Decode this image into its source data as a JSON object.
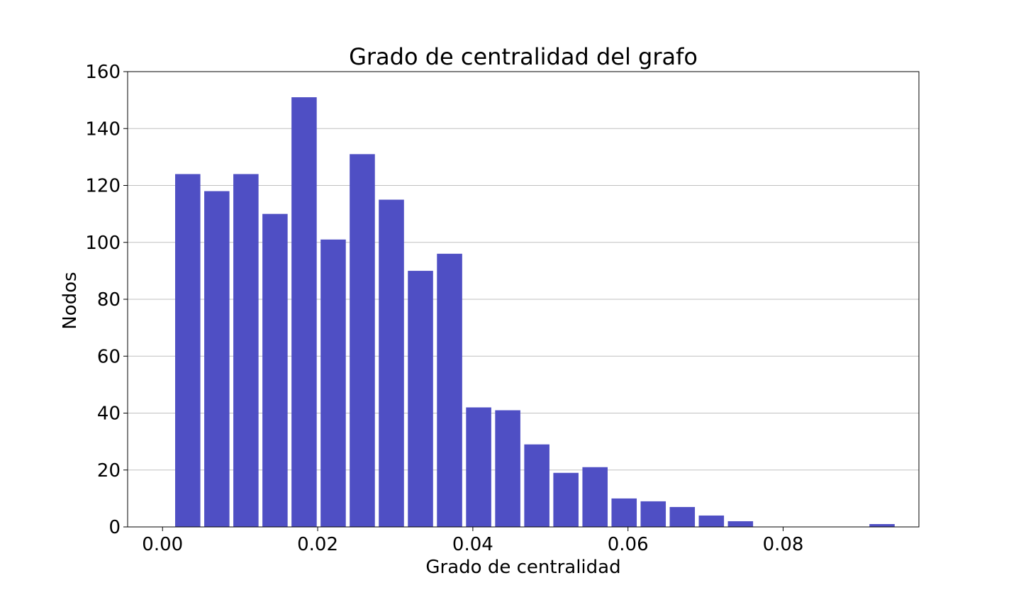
{
  "chart_data": {
    "type": "bar",
    "title": "Grado de centralidad del grafo",
    "xlabel": "Grado de centralidad",
    "ylabel": "Nodos",
    "xlim": [
      -0.0045,
      0.0975
    ],
    "ylim": [
      0,
      160
    ],
    "x_ticks": [
      0.0,
      0.02,
      0.04,
      0.06,
      0.08
    ],
    "x_tick_labels": [
      "0.00",
      "0.02",
      "0.04",
      "0.06",
      "0.08"
    ],
    "y_ticks": [
      0,
      20,
      40,
      60,
      80,
      100,
      120,
      140,
      160
    ],
    "y_tick_labels": [
      "0",
      "20",
      "40",
      "60",
      "80",
      "100",
      "120",
      "140",
      "160"
    ],
    "grid": "horizontal",
    "bar_width": 0.00325,
    "x": [
      0.00325,
      0.007,
      0.01075,
      0.0145,
      0.01825,
      0.022,
      0.02575,
      0.0295,
      0.03325,
      0.037,
      0.04075,
      0.0445,
      0.04825,
      0.052,
      0.05575,
      0.0595,
      0.06325,
      0.067,
      0.07075,
      0.0745,
      0.07825,
      0.082,
      0.08575,
      0.0895,
      0.09275
    ],
    "values": [
      124,
      118,
      124,
      110,
      151,
      101,
      131,
      115,
      90,
      96,
      42,
      41,
      29,
      19,
      21,
      10,
      9,
      7,
      4,
      2,
      0,
      0,
      0,
      0,
      1
    ],
    "bar_color": "#4f4fc4",
    "grid_color": "#c0c0c0"
  }
}
